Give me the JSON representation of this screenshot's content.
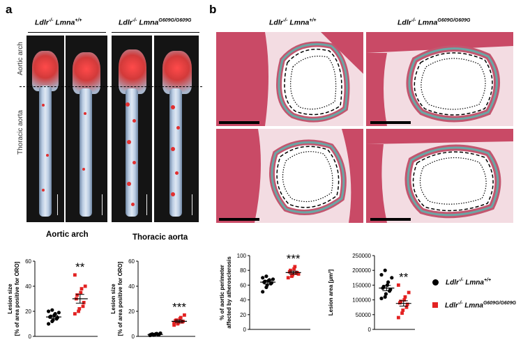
{
  "panel_a": {
    "letter": "a",
    "geno_wt": {
      "base": "Ldlr",
      "sup1": "-/-",
      "mid": " Lmna",
      "sup2": "+/+"
    },
    "geno_mut": {
      "base": "Ldlr",
      "sup1": "-/-",
      "mid": " Lmna",
      "sup2": "G609G/G609G"
    },
    "label_arch": "Aortic arch",
    "label_thoracic": "Thoracic aorta"
  },
  "panel_b": {
    "letter": "b",
    "geno_wt": {
      "base": "Ldlr",
      "sup1": "-/-",
      "mid": " Lmna",
      "sup2": "+/+"
    },
    "geno_mut": {
      "base": "Ldlr",
      "sup1": "-/-",
      "mid": " Lmna",
      "sup2": "G609G/G609G"
    }
  },
  "legend": {
    "wt": {
      "base": "Ldlr",
      "sup1": "-/-",
      "mid": " Lmna",
      "sup2": "+/+"
    },
    "mut": {
      "base": "Ldlr",
      "sup1": "-/-",
      "mid": " Lmna",
      "sup2": "G609G/G609G"
    },
    "wt_color": "#000000",
    "mut_color": "#e32222"
  },
  "chart_data": [
    {
      "type": "scatter",
      "title": "Aortic arch",
      "ylabel_lines": [
        "Lesion size",
        "[% of area positive for ORO]"
      ],
      "ylim": [
        0,
        60
      ],
      "yticks": [
        0,
        20,
        40,
        60
      ],
      "significance": "**",
      "series": [
        {
          "group": "wt",
          "color": "#000000",
          "marker": "circle",
          "mean": 15.5,
          "sem": 1.2,
          "values": [
            10,
            12,
            13,
            14,
            15,
            15.5,
            16,
            17,
            18,
            19,
            20,
            21
          ]
        },
        {
          "group": "mut",
          "color": "#e32222",
          "marker": "square",
          "mean": 30,
          "sem": 3.5,
          "values": [
            18,
            20,
            22,
            24,
            27,
            30,
            33,
            35,
            38,
            40,
            49
          ]
        }
      ]
    },
    {
      "type": "scatter",
      "title": "Thoracic aorta",
      "ylabel_lines": [
        "Lesion size",
        "[% of area positive for ORO]"
      ],
      "ylim": [
        0,
        60
      ],
      "yticks": [
        0,
        20,
        40,
        60
      ],
      "significance": "***",
      "series": [
        {
          "group": "wt",
          "color": "#000000",
          "marker": "circle",
          "mean": 1.5,
          "sem": 0.3,
          "values": [
            0.8,
            1,
            1.2,
            1.4,
            1.5,
            1.6,
            1.8,
            2,
            2.2,
            2.5,
            1.1,
            1.3
          ]
        },
        {
          "group": "mut",
          "color": "#e32222",
          "marker": "square",
          "mean": 12,
          "sem": 1,
          "values": [
            9,
            10,
            11,
            11.5,
            12,
            12.5,
            13,
            14,
            15,
            17,
            10.5
          ]
        }
      ]
    },
    {
      "type": "scatter",
      "title": "",
      "ylabel_lines": [
        "% of aortic perimeter",
        "affected by atherosclerosis"
      ],
      "ylim": [
        0,
        100
      ],
      "yticks": [
        0,
        20,
        40,
        60,
        80,
        100
      ],
      "significance": "***",
      "series": [
        {
          "group": "wt",
          "color": "#000000",
          "marker": "circle",
          "mean": 64,
          "sem": 2.5,
          "values": [
            51,
            57,
            60,
            62,
            63,
            64,
            65,
            66,
            67,
            68,
            70,
            72
          ]
        },
        {
          "group": "mut",
          "color": "#e32222",
          "marker": "square",
          "mean": 77,
          "sem": 2,
          "values": [
            70,
            72,
            74,
            76,
            77,
            78,
            80,
            82,
            85,
            75
          ]
        }
      ]
    },
    {
      "type": "scatter",
      "title": "",
      "ylabel_lines": [
        "Lesion area [µm²]"
      ],
      "ylim": [
        0,
        250000
      ],
      "yticks": [
        0,
        50000,
        100000,
        150000,
        200000,
        250000
      ],
      "significance": "**",
      "series": [
        {
          "group": "wt",
          "color": "#000000",
          "marker": "circle",
          "mean": 140000,
          "sem": 9000,
          "values": [
            105000,
            110000,
            120000,
            130000,
            135000,
            140000,
            145000,
            150000,
            160000,
            175000,
            185000,
            200000
          ]
        },
        {
          "group": "mut",
          "color": "#e32222",
          "marker": "square",
          "mean": 88000,
          "sem": 9000,
          "values": [
            40000,
            55000,
            65000,
            75000,
            85000,
            90000,
            95000,
            100000,
            110000,
            125000,
            150000
          ]
        }
      ]
    }
  ]
}
